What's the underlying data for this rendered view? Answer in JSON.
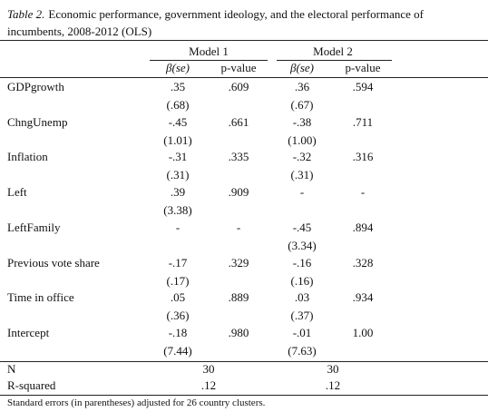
{
  "caption": {
    "label": "Table 2.",
    "text": "Economic performance, government ideology, and the electoral performance of incumbents, 2008-2012 (OLS)"
  },
  "header": {
    "models": [
      "Model 1",
      "Model 2"
    ],
    "columns": [
      "β(se)",
      "p-value",
      "β(se)",
      "p-value"
    ]
  },
  "rows": [
    {
      "label": "GDPgrowth",
      "model1": {
        "beta": ".35",
        "se": "(.68)",
        "p": ".609"
      },
      "model2": {
        "beta": ".36",
        "se": "(.67)",
        "p": ".594"
      }
    },
    {
      "label": "ChngUnemp",
      "model1": {
        "beta": "-.45",
        "se": "(1.01)",
        "p": ".661"
      },
      "model2": {
        "beta": "-.38",
        "se": "(1.00)",
        "p": ".711"
      }
    },
    {
      "label": "Inflation",
      "model1": {
        "beta": "-.31",
        "se": "(.31)",
        "p": ".335"
      },
      "model2": {
        "beta": "-.32",
        "se": "(.31)",
        "p": ".316"
      }
    },
    {
      "label": "Left",
      "model1": {
        "beta": ".39",
        "se": "(3.38)",
        "p": ".909"
      },
      "model2": {
        "beta": "-",
        "p": "-"
      }
    },
    {
      "label": "LeftFamily",
      "model1": {
        "beta": "-",
        "p": "-"
      },
      "model2": {
        "beta": "-.45",
        "se": "(3.34)",
        "p": ".894"
      }
    },
    {
      "label": "Previous vote share",
      "model1": {
        "beta": "-.17",
        "se": "(.17)",
        "p": ".329"
      },
      "model2": {
        "beta": "-.16",
        "se": "(.16)",
        "p": ".328"
      }
    },
    {
      "label": "Time in office",
      "model1": {
        "beta": ".05",
        "se": "(.36)",
        "p": ".889"
      },
      "model2": {
        "beta": ".03",
        "se": "(.37)",
        "p": ".934"
      }
    },
    {
      "label": "Intercept",
      "model1": {
        "beta": "-.18",
        "se": "(7.44)",
        "p": ".980"
      },
      "model2": {
        "beta": "-.01",
        "se": "(7.63)",
        "p": "1.00"
      }
    }
  ],
  "stats": [
    {
      "label": "N",
      "values": [
        "30",
        "30"
      ]
    },
    {
      "label": "R-squared",
      "values": [
        ".12",
        ".12"
      ]
    }
  ],
  "footnote": "Standard errors (in parentheses) adjusted for 26 country clusters."
}
